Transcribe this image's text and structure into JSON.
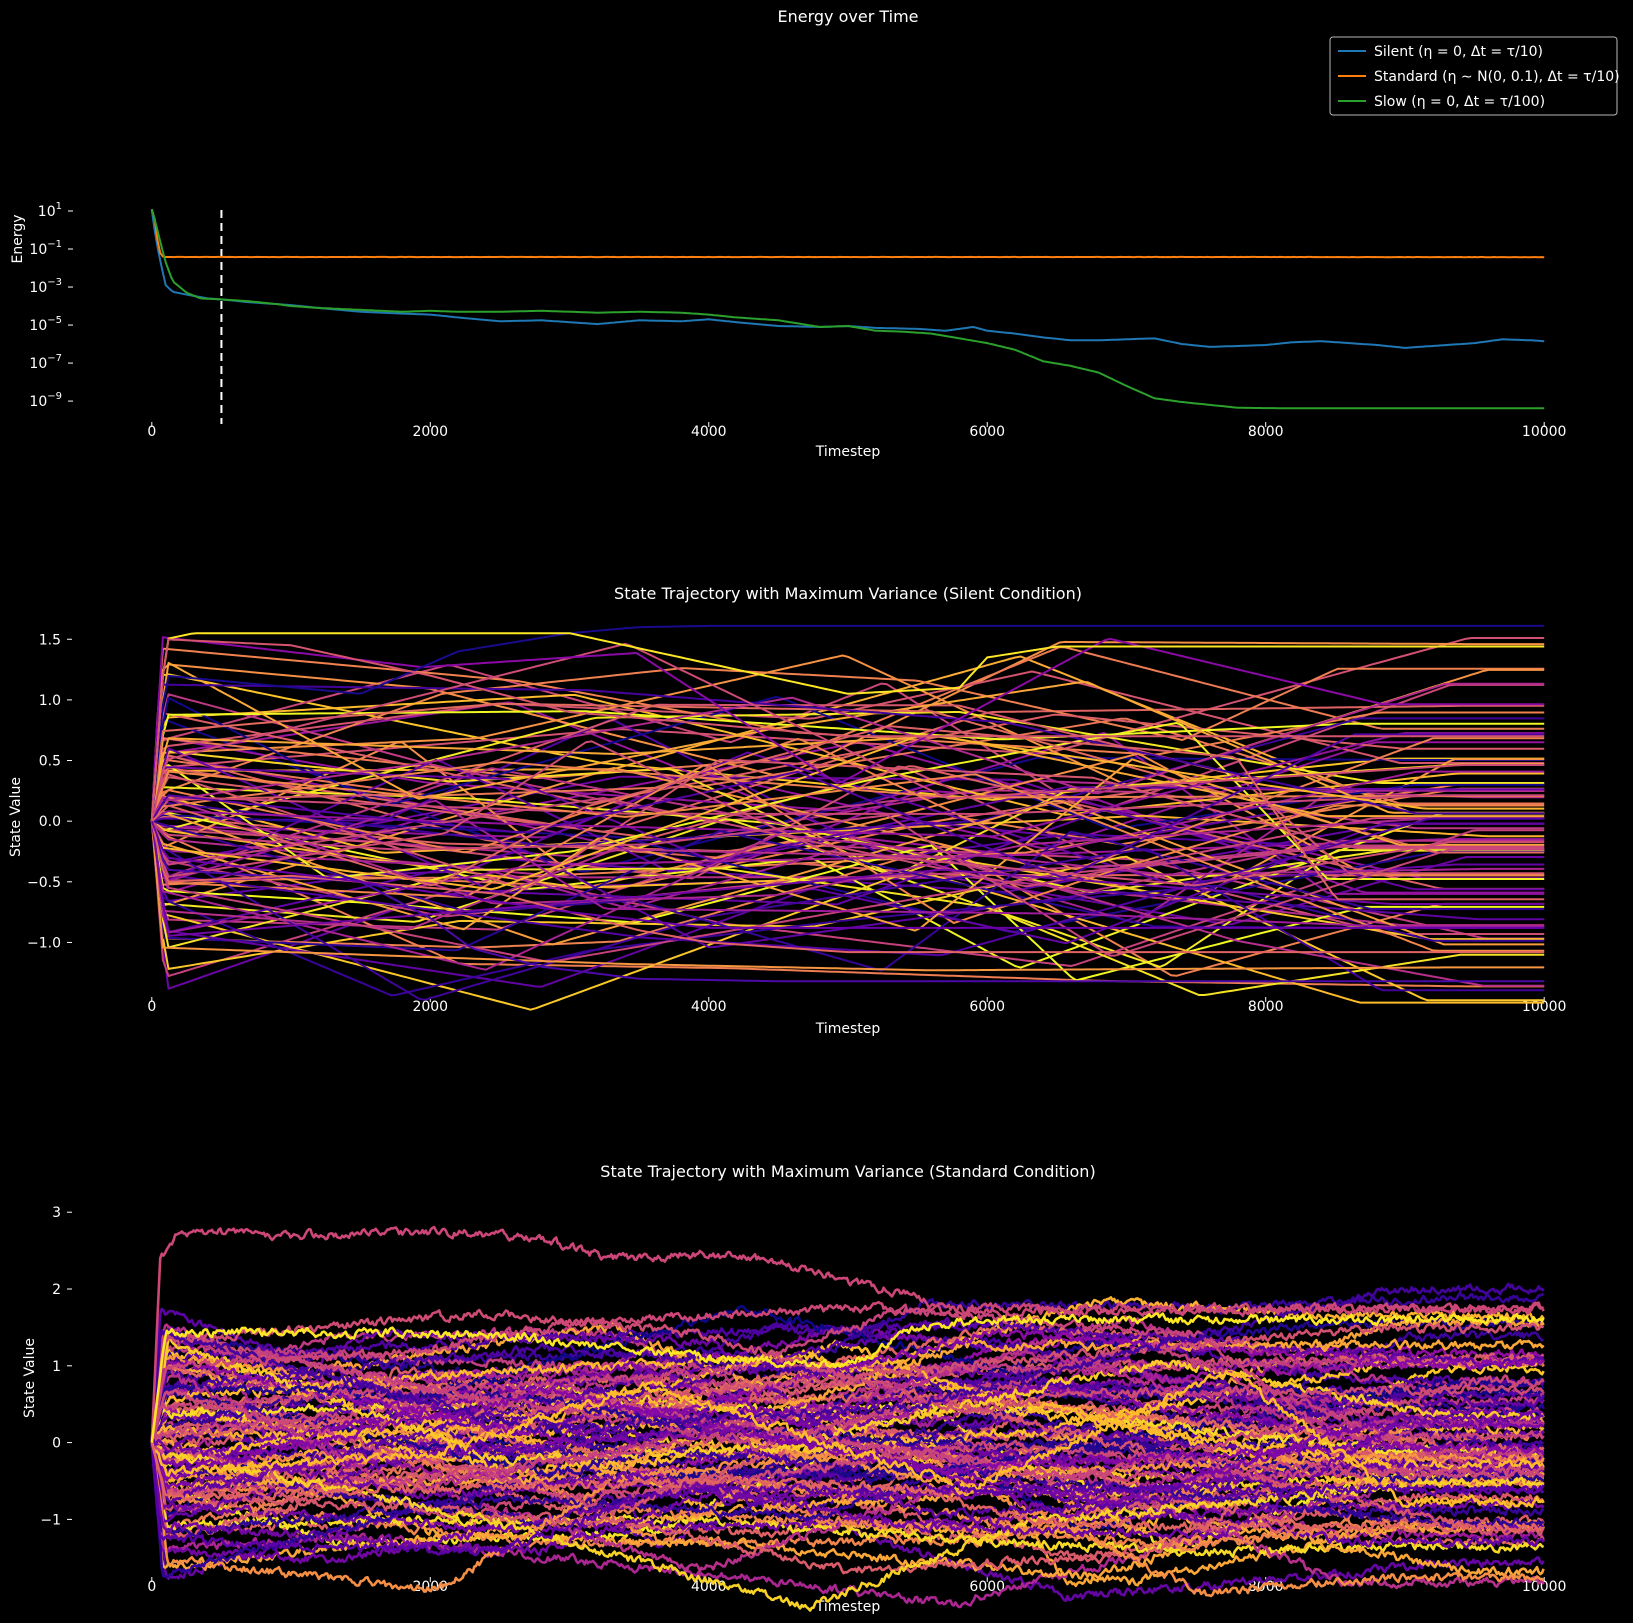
{
  "figure": {
    "background": "#000000",
    "text_color": "#ffffff"
  },
  "chart_data": [
    {
      "type": "line",
      "title": "Energy over Time",
      "xlabel": "Timestep",
      "ylabel": "Energy",
      "xlim": [
        -250,
        10250
      ],
      "ylim_log10": [
        -10.1,
        10.1
      ],
      "yscale": "log",
      "x_ticks": [
        0,
        2000,
        4000,
        6000,
        8000,
        10000
      ],
      "x_tick_labels": [
        "0",
        "2000",
        "4000",
        "6000",
        "8000",
        "10000"
      ],
      "y_ticks": [
        1,
        -1,
        -3,
        -5,
        -7,
        -9
      ],
      "y_tick_labels": [
        {
          "base": "10",
          "exp": "1"
        },
        {
          "base": "10",
          "exp": "−1"
        },
        {
          "base": "10",
          "exp": "−3"
        },
        {
          "base": "10",
          "exp": "−5"
        },
        {
          "base": "10",
          "exp": "−7"
        },
        {
          "base": "10",
          "exp": "−9"
        }
      ],
      "legend": {
        "position": "top-right",
        "entries": [
          "Silent (η = 0, Δt = τ/10)",
          "Standard (η ∼ N(0, 0.1), Δt = τ/10)",
          "Slow (η = 0, Δt = τ/100)"
        ]
      },
      "vline": {
        "x": 500,
        "style": "dashed",
        "color": "#ffffff"
      },
      "series": [
        {
          "name": "Silent (η = 0, Δt = τ/10)",
          "color": "#1f77b4",
          "x": [
            0,
            30,
            60,
            100,
            150,
            250,
            400,
            500,
            700,
            900,
            1000,
            1200,
            1500,
            1800,
            2000,
            2200,
            2500,
            2800,
            3000,
            3200,
            3500,
            3800,
            4000,
            4200,
            4500,
            4800,
            5000,
            5200,
            5500,
            5700,
            5900,
            6000,
            6200,
            6400,
            6600,
            6800,
            7000,
            7200,
            7400,
            7600,
            7800,
            8000,
            8200,
            8400,
            8600,
            8800,
            9000,
            9200,
            9500,
            9700,
            9900,
            10000
          ],
          "log10_y": [
            1.05,
            -0.5,
            -1.6,
            -2.9,
            -3.25,
            -3.4,
            -3.6,
            -3.65,
            -3.8,
            -3.9,
            -3.95,
            -4.1,
            -4.3,
            -4.4,
            -4.45,
            -4.6,
            -4.8,
            -4.75,
            -4.85,
            -4.95,
            -4.75,
            -4.8,
            -4.7,
            -4.85,
            -5.05,
            -5.1,
            -5.05,
            -5.15,
            -5.2,
            -5.3,
            -5.1,
            -5.3,
            -5.45,
            -5.65,
            -5.8,
            -5.8,
            -5.75,
            -5.7,
            -6.0,
            -6.15,
            -6.1,
            -6.05,
            -5.9,
            -5.85,
            -5.95,
            -6.05,
            -6.2,
            -6.1,
            -5.95,
            -5.75,
            -5.8,
            -5.85
          ]
        },
        {
          "name": "Standard (η ∼ N(0, 0.1), Δt = τ/10)",
          "color": "#ff7f0e",
          "x": [
            0,
            20,
            40,
            60,
            80,
            100,
            200,
            500,
            1000,
            2000,
            4000,
            6000,
            8000,
            10000
          ],
          "log10_y": [
            1.1,
            0.6,
            -0.5,
            -1.2,
            -1.4,
            -1.42,
            -1.42,
            -1.42,
            -1.42,
            -1.42,
            -1.42,
            -1.42,
            -1.42,
            -1.43
          ]
        },
        {
          "name": "Slow (η = 0, Δt = τ/100)",
          "color": "#2ca02c",
          "x": [
            0,
            30,
            60,
            100,
            150,
            250,
            350,
            500,
            700,
            900,
            1000,
            1200,
            1500,
            1800,
            2000,
            2200,
            2500,
            2800,
            3000,
            3200,
            3500,
            3800,
            4000,
            4200,
            4500,
            4800,
            5000,
            5200,
            5400,
            5600,
            5800,
            6000,
            6200,
            6400,
            6600,
            6800,
            7000,
            7200,
            7400,
            7600,
            7800,
            8000,
            8500,
            9000,
            9500,
            10000
          ],
          "log10_y": [
            1.1,
            0.3,
            -0.6,
            -1.7,
            -2.7,
            -3.3,
            -3.6,
            -3.65,
            -3.75,
            -3.9,
            -4.0,
            -4.1,
            -4.2,
            -4.3,
            -4.25,
            -4.3,
            -4.3,
            -4.25,
            -4.3,
            -4.35,
            -4.3,
            -4.35,
            -4.45,
            -4.6,
            -4.75,
            -5.1,
            -5.05,
            -5.3,
            -5.35,
            -5.45,
            -5.7,
            -5.95,
            -6.3,
            -6.9,
            -7.15,
            -7.5,
            -8.2,
            -8.85,
            -9.05,
            -9.2,
            -9.35,
            -9.37,
            -9.38,
            -9.38,
            -9.38,
            -9.38
          ]
        }
      ]
    },
    {
      "type": "line",
      "title": "State Trajectory with Maximum Variance (Silent Condition)",
      "xlabel": "Timestep",
      "ylabel": "State Value",
      "xlim": [
        -250,
        10250
      ],
      "ylim": [
        -1.45,
        1.7
      ],
      "x_ticks": [
        0,
        2000,
        4000,
        6000,
        8000,
        10000
      ],
      "x_tick_labels": [
        "0",
        "2000",
        "4000",
        "6000",
        "8000",
        "10000"
      ],
      "y_ticks": [
        -1.0,
        -0.5,
        0.0,
        0.5,
        1.0,
        1.5
      ],
      "y_tick_labels": [
        "−1.0",
        "−0.5",
        "0.0",
        "0.5",
        "1.0",
        "1.5"
      ],
      "colormap": "plasma",
      "trajectory_count": 100,
      "noise": 0,
      "highlighted_trajectories": [
        {
          "color": "#1a0a8c",
          "x": [
            0,
            100,
            1500,
            2200,
            3000,
            3500,
            4000,
            10000
          ],
          "y": [
            0.0,
            1.2,
            1.05,
            1.4,
            1.55,
            1.6,
            1.61,
            1.61
          ]
        },
        {
          "color": "#fde725",
          "x": [
            0,
            100,
            300,
            3000,
            4000,
            5000,
            5800,
            6000,
            6500,
            10000
          ],
          "y": [
            0.0,
            1.5,
            1.55,
            1.55,
            1.3,
            1.05,
            1.1,
            1.35,
            1.44,
            1.44
          ]
        },
        {
          "color": "#4b0aa8",
          "x": [
            0,
            100,
            1500,
            2000,
            2300,
            2800,
            3500,
            4500,
            10000
          ],
          "y": [
            0.0,
            -0.4,
            -0.5,
            -0.8,
            -1.05,
            -1.2,
            -1.3,
            -1.32,
            -1.32
          ]
        },
        {
          "color": "#e16462",
          "x": [
            0,
            100,
            1000,
            2500,
            3500,
            4000,
            5000,
            10000
          ],
          "y": [
            0.0,
            -0.5,
            -0.45,
            -0.6,
            -0.9,
            -1.0,
            -1.08,
            -1.08
          ]
        },
        {
          "color": "#6a00a8",
          "x": [
            0,
            100,
            1500,
            3000,
            4000,
            10000
          ],
          "y": [
            0.0,
            -0.3,
            -0.5,
            -0.75,
            -0.88,
            -0.88
          ]
        },
        {
          "color": "#d5546e",
          "x": [
            0,
            100,
            1000,
            2000,
            3000,
            4000,
            5000,
            10000
          ],
          "y": [
            0.0,
            1.5,
            1.45,
            1.2,
            0.9,
            0.8,
            0.7,
            0.7
          ]
        }
      ]
    },
    {
      "type": "line",
      "title": "State Trajectory with Maximum Variance (Standard Condition)",
      "xlabel": "Timestep",
      "ylabel": "State Value",
      "xlim": [
        -250,
        10250
      ],
      "ylim": [
        -1.75,
        3.25
      ],
      "x_ticks": [
        0,
        2000,
        4000,
        6000,
        8000,
        10000
      ],
      "x_tick_labels": [
        "0",
        "2000",
        "4000",
        "6000",
        "8000",
        "10000"
      ],
      "y_ticks": [
        -1,
        0,
        1,
        2,
        3
      ],
      "y_tick_labels": [
        "−1",
        "0",
        "1",
        "2",
        "3"
      ],
      "colormap": "plasma",
      "trajectory_count": 100,
      "noise": 0.04,
      "highlighted_trajectories": [
        {
          "color": "#cc4778",
          "x": [
            0,
            60,
            200,
            1000,
            2000,
            2800,
            3300,
            4000,
            4500,
            5000,
            5400,
            5700,
            10000
          ],
          "y": [
            0.0,
            2.4,
            2.75,
            2.7,
            2.75,
            2.65,
            2.4,
            2.45,
            2.35,
            2.1,
            1.95,
            1.7,
            1.75
          ]
        },
        {
          "color": "#cc4778",
          "x": [
            0,
            100,
            2000,
            3000,
            4000,
            5000,
            10000
          ],
          "y": [
            0.0,
            1.0,
            1.2,
            1.55,
            1.65,
            1.75,
            1.75
          ]
        },
        {
          "color": "#5c01a6",
          "x": [
            0,
            60,
            1000,
            2500,
            3000,
            3500,
            4000,
            10000
          ],
          "y": [
            0.0,
            -1.25,
            -1.35,
            -1.4,
            -1.1,
            -0.7,
            -0.6,
            -0.6
          ]
        },
        {
          "color": "#e16462",
          "x": [
            0,
            100,
            2000,
            4000,
            5500,
            6000,
            6500,
            8000,
            10000
          ],
          "y": [
            0.0,
            -0.7,
            -0.6,
            -0.5,
            -0.6,
            -0.9,
            -1.05,
            -1.1,
            -1.1
          ]
        },
        {
          "color": "#fde725",
          "x": [
            0,
            100,
            2500,
            4000,
            5000,
            5500,
            6000,
            10000
          ],
          "y": [
            0.0,
            1.45,
            1.4,
            1.1,
            1.0,
            1.5,
            1.6,
            1.6
          ]
        }
      ]
    }
  ]
}
